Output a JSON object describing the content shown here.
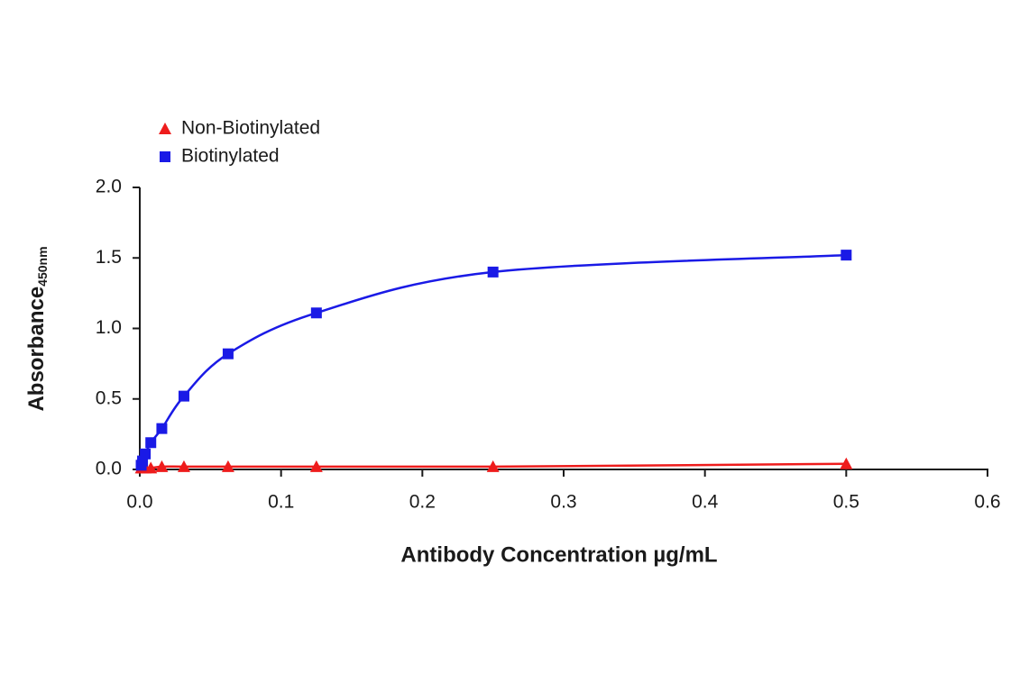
{
  "chart_data": {
    "type": "scatter",
    "x_label": "Antibody Concentration µg/mL",
    "y_label": "Absorbance",
    "y_label_subscript": "450nm",
    "x": [
      0.00098,
      0.00195,
      0.0039,
      0.0078,
      0.0156,
      0.03125,
      0.0625,
      0.125,
      0.25,
      0.5
    ],
    "series": [
      {
        "name": "Non-Biotinylated",
        "color": "#ee1c1c",
        "marker": "triangle",
        "values": [
          0.01,
          0.01,
          0.01,
          0.01,
          0.02,
          0.02,
          0.02,
          0.02,
          0.02,
          0.04
        ]
      },
      {
        "name": "Biotinylated",
        "color": "#1a1ae6",
        "marker": "square",
        "values": [
          0.03,
          0.06,
          0.11,
          0.19,
          0.29,
          0.52,
          0.82,
          1.11,
          1.4,
          1.52
        ]
      }
    ],
    "xlim": [
      0,
      0.6
    ],
    "xticks": [
      {
        "value": 0,
        "label": "0.0"
      },
      0.1,
      0.2,
      0.3,
      0.4,
      0.5,
      0.6
    ],
    "ylim": [
      0,
      2
    ],
    "yticks": [
      {
        "value": 0,
        "label": "0.0"
      },
      0.5,
      {
        "value": 1,
        "label": "1.0"
      },
      1.5,
      {
        "value": 2,
        "label": "2.0"
      }
    ],
    "grid": false,
    "legend": "top-left"
  }
}
